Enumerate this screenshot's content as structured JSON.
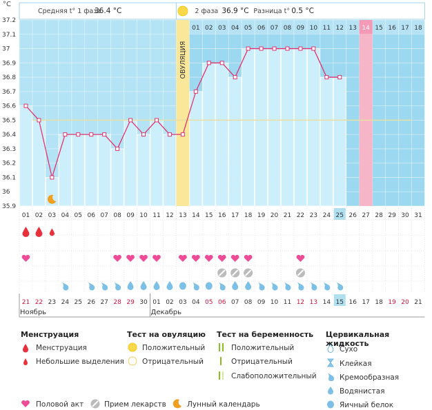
{
  "header": {
    "phase1_label": "Средняя t° 1 фаза",
    "phase1_value": "36.4 °C",
    "phase2_label": "2 фаза",
    "phase2_value": "36.9 °C",
    "diff_label": "Разница t°",
    "diff_value": "0.5 °C"
  },
  "y_unit": "°C",
  "ovulation_label": "ОВУЛЯЦИЯ",
  "colors": {
    "phase1_bg": "#b3e3f5",
    "phase2_bg": "#9cd8f0",
    "bar": "#cdeefb",
    "line": "#e0336e",
    "ovulation": "#fbe79a",
    "highlight": "#f7b6c8",
    "today": "#b0dff0",
    "coverline": "#e8e0a0"
  },
  "chart_data": {
    "type": "line",
    "y_axis": {
      "min": 35.9,
      "max": 37.2,
      "step": 0.1,
      "ticks": [
        "37.2",
        "37.1",
        "37",
        "36.9",
        "36.8",
        "36.7",
        "36.6",
        "36.5",
        "36.4",
        "36.3",
        "36.2",
        "36.1",
        "36",
        "35.9"
      ]
    },
    "cycle_days": [
      "01",
      "02",
      "03",
      "04",
      "05",
      "06",
      "07",
      "08",
      "09",
      "10",
      "11",
      "12",
      "13",
      "14",
      "15",
      "16",
      "17",
      "18",
      "19",
      "20",
      "21",
      "22",
      "23",
      "24",
      "25",
      "26",
      "27",
      "28",
      "29",
      "30",
      "31"
    ],
    "phase2_day_numbers": [
      "01",
      "02",
      "03",
      "04",
      "05",
      "06",
      "07",
      "08",
      "09",
      "10",
      "11",
      "12",
      "13",
      "14",
      "15",
      "16",
      "17",
      "18"
    ],
    "temperatures": [
      36.6,
      36.5,
      36.1,
      36.4,
      36.4,
      36.4,
      36.4,
      36.3,
      36.5,
      36.4,
      36.5,
      36.4,
      36.4,
      36.7,
      36.9,
      36.9,
      36.8,
      37.0,
      37.0,
      37.0,
      37.0,
      37.0,
      37.0,
      36.8,
      36.8,
      null,
      null,
      null,
      null,
      null,
      null
    ],
    "coverline": 36.5,
    "ovulation_day_index": 12,
    "highlight_day_index": 26,
    "today_day_index": 24,
    "calendar_dates": [
      "21",
      "22",
      "23",
      "24",
      "25",
      "26",
      "27",
      "28",
      "29",
      "30",
      "01",
      "02",
      "03",
      "04",
      "05",
      "06",
      "07",
      "08",
      "09",
      "10",
      "11",
      "12",
      "13",
      "14",
      "15",
      "16",
      "17",
      "18",
      "19",
      "20",
      "21"
    ],
    "weekend_indices": [
      0,
      1,
      7,
      8,
      14,
      15,
      21,
      22,
      28,
      29
    ],
    "month_labels": [
      {
        "label": "Ноябрь",
        "start_index": 0
      },
      {
        "label": "Декабрь",
        "start_index": 10
      }
    ],
    "menstruation": [
      "heavy",
      "heavy",
      "light",
      null,
      null,
      null,
      null,
      null,
      null,
      null,
      null,
      null,
      null,
      null,
      null,
      null,
      null,
      null,
      null,
      null,
      null,
      null,
      null,
      null,
      null,
      null,
      null,
      null,
      null,
      null,
      null
    ],
    "intercourse_days": [
      0,
      7,
      8,
      9,
      10,
      12,
      13,
      14,
      15,
      16,
      17,
      21
    ],
    "medication_days": [
      15,
      16,
      17,
      21
    ],
    "moon_days": [
      2
    ],
    "cervical_fluid": [
      null,
      null,
      null,
      "creamy",
      null,
      "creamy",
      "creamy",
      "creamy",
      "watery",
      "watery",
      "watery",
      "watery",
      "eggwhite",
      "creamy",
      "eggwhite",
      "creamy",
      "watery",
      "watery",
      "creamy",
      "creamy",
      "creamy",
      "creamy",
      "creamy",
      "creamy",
      "creamy",
      null,
      null,
      null,
      null,
      null,
      null
    ]
  },
  "legend": {
    "menstruation_title": "Менструация",
    "menstruation_items": [
      "Менструация",
      "Небольшие выделения"
    ],
    "ovulation_test_title": "Тест на овуляцию",
    "ovulation_test_items": [
      "Положительный",
      "Отрицательный"
    ],
    "pregnancy_test_title": "Тест на беременность",
    "pregnancy_test_items": [
      "Положительный",
      "Отрицательный",
      "Слабоположительный"
    ],
    "cervical_title": "Цервикальная жидкость",
    "cervical_items": [
      "Сухо",
      "Клейкая",
      "Кремообразная",
      "Водянистая",
      "Яичный белок"
    ],
    "bottom_items": [
      "Половой акт",
      "Прием лекарств",
      "Лунный календарь"
    ]
  }
}
